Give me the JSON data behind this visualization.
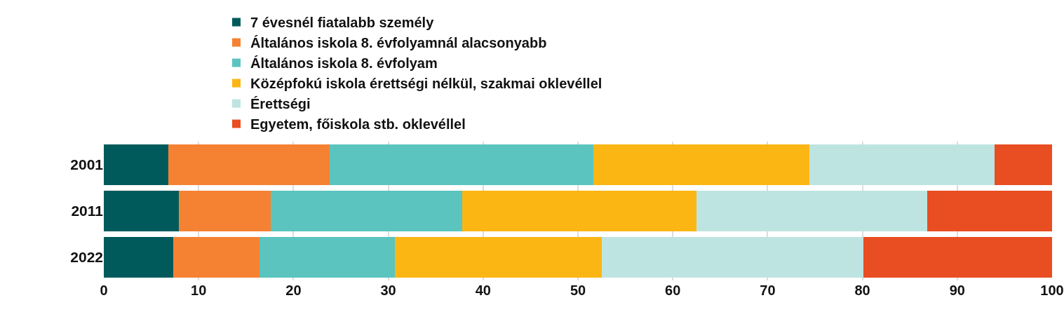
{
  "chart_data": {
    "type": "bar",
    "orientation": "horizontal",
    "stacked": true,
    "categories": [
      "2001",
      "2011",
      "2022"
    ],
    "series": [
      {
        "name": "7 évesnél fiatalabb személy",
        "color": "#005a5b",
        "values": [
          6.8,
          7.9,
          7.3
        ]
      },
      {
        "name": "Általános iskola 8. évfolyamnál alacsonyabb",
        "color": "#f58233",
        "values": [
          17.0,
          9.7,
          9.1
        ]
      },
      {
        "name": "Általános iskola 8. évfolyam",
        "color": "#5bc4bf",
        "values": [
          27.8,
          20.2,
          14.3
        ]
      },
      {
        "name": "Középfokú iskola érettségi nélkül, szakmai oklevéllel",
        "color": "#fbb614",
        "values": [
          22.8,
          24.7,
          21.8
        ]
      },
      {
        "name": "Érettségi",
        "color": "#bee4e1",
        "values": [
          19.5,
          24.3,
          27.6
        ]
      },
      {
        "name": "Egyetem, főiskola stb. oklevéllel",
        "color": "#e84e22",
        "values": [
          6.1,
          13.2,
          19.9
        ]
      }
    ],
    "xlim": [
      0,
      100
    ],
    "xticks": [
      0,
      10,
      20,
      30,
      40,
      50,
      60,
      70,
      80,
      90,
      100
    ],
    "grid": "x",
    "legend": "top"
  }
}
